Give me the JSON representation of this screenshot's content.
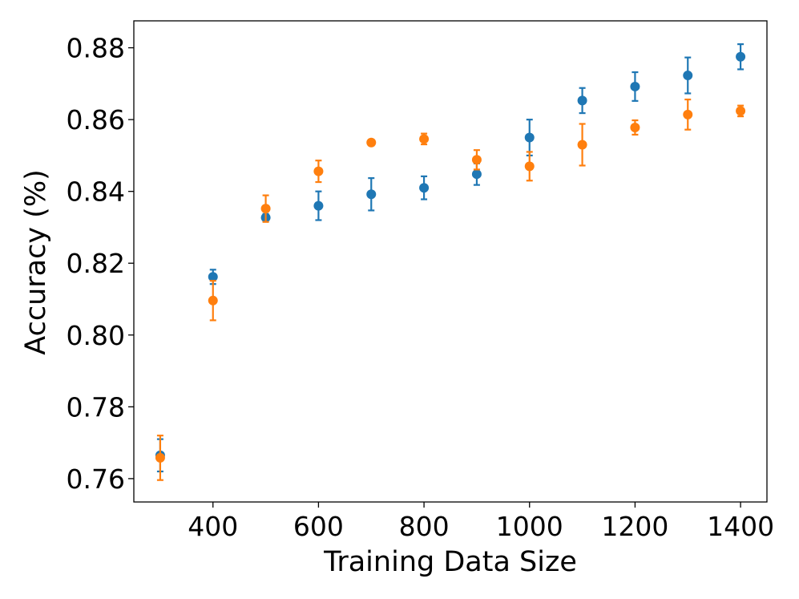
{
  "chart_data": {
    "type": "scatter",
    "xlabel": "Training Data Size",
    "ylabel": "Accuracy (%)",
    "xlim": [
      250,
      1450
    ],
    "ylim": [
      0.7535,
      0.8875
    ],
    "xticks": [
      400,
      600,
      800,
      1000,
      1200,
      1400
    ],
    "xtick_labels": [
      "400",
      "600",
      "800",
      "1000",
      "1200",
      "1400"
    ],
    "yticks": [
      0.76,
      0.78,
      0.8,
      0.82,
      0.84,
      0.86,
      0.88
    ],
    "ytick_labels": [
      "0.76",
      "0.78",
      "0.80",
      "0.82",
      "0.84",
      "0.86",
      "0.88"
    ],
    "grid": false,
    "series": [
      {
        "color": "#1f77b4",
        "x": [
          300,
          400,
          500,
          600,
          700,
          800,
          900,
          1000,
          1100,
          1200,
          1300,
          1400
        ],
        "y": [
          0.7665,
          0.8162,
          0.8327,
          0.836,
          0.8392,
          0.841,
          0.8448,
          0.855,
          0.8653,
          0.8692,
          0.8723,
          0.8775
        ],
        "err": [
          0.0045,
          0.002,
          0.001,
          0.004,
          0.0045,
          0.0032,
          0.003,
          0.005,
          0.0035,
          0.004,
          0.005,
          0.0035
        ]
      },
      {
        "color": "#ff7f0e",
        "x": [
          300,
          400,
          500,
          600,
          700,
          800,
          900,
          1000,
          1100,
          1200,
          1300,
          1400
        ],
        "y": [
          0.7658,
          0.8096,
          0.8352,
          0.8456,
          0.8536,
          0.8546,
          0.8488,
          0.847,
          0.853,
          0.8578,
          0.8614,
          0.8624
        ],
        "err": [
          0.0062,
          0.0055,
          0.0037,
          0.003,
          0.0008,
          0.0015,
          0.0027,
          0.004,
          0.0058,
          0.002,
          0.0042,
          0.0015
        ]
      }
    ]
  }
}
